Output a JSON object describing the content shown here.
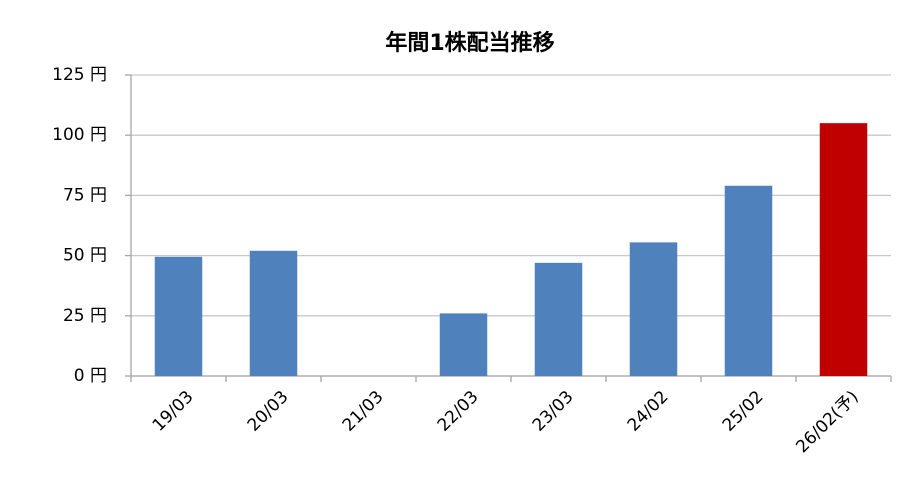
{
  "chart_data": {
    "type": "bar",
    "title": "年間1株配当推移",
    "categories": [
      "19/03",
      "20/03",
      "21/03",
      "22/03",
      "23/03",
      "24/02",
      "25/02",
      "26/02(予)"
    ],
    "values": [
      49.5,
      52,
      0,
      26,
      47,
      55.5,
      79,
      105
    ],
    "colors": [
      "#4f81bd",
      "#4f81bd",
      "#4f81bd",
      "#4f81bd",
      "#4f81bd",
      "#4f81bd",
      "#4f81bd",
      "#c00000"
    ],
    "ylim": [
      0,
      125
    ],
    "yticks": [
      {
        "value": 0,
        "label": "0 円"
      },
      {
        "value": 25,
        "label": "25 円"
      },
      {
        "value": 50,
        "label": "50 円"
      },
      {
        "value": 75,
        "label": "75 円"
      },
      {
        "value": 100,
        "label": "100 円"
      },
      {
        "value": 125,
        "label": "125 円"
      }
    ],
    "grid": true
  }
}
